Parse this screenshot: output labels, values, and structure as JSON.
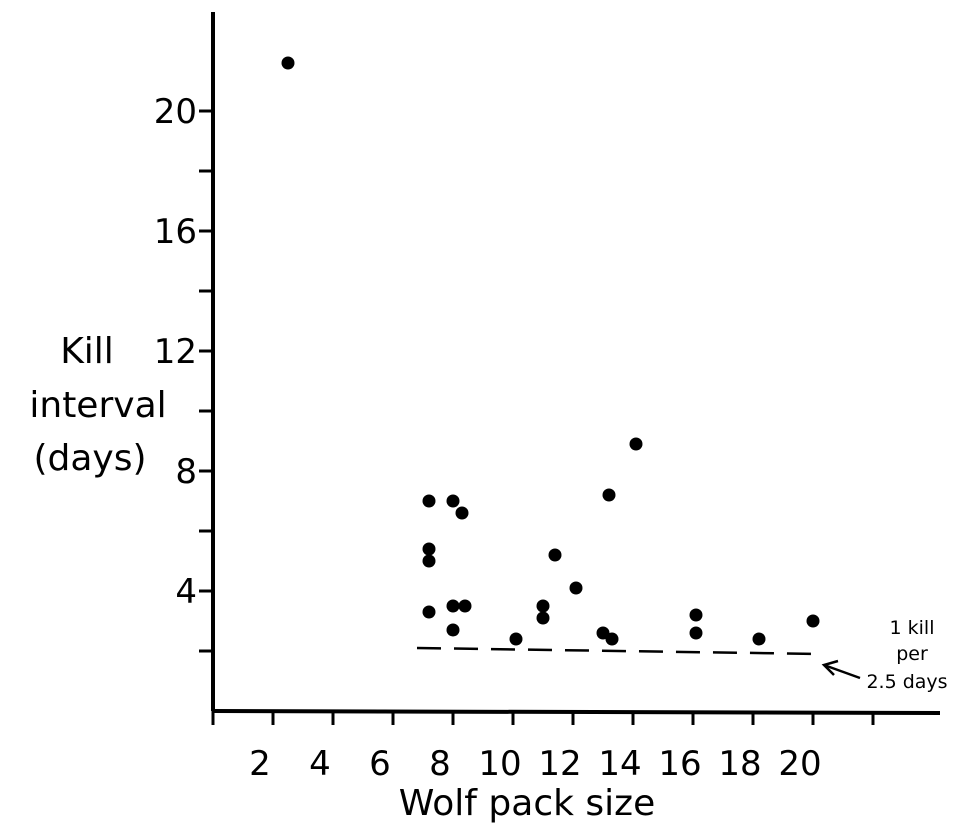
{
  "chart_data": {
    "type": "scatter",
    "title": "",
    "xlabel": "Wolf pack size",
    "ylabel_lines": [
      "Kill",
      "interval",
      "(days)"
    ],
    "xlim": [
      0,
      24
    ],
    "ylim": [
      0,
      24
    ],
    "x_ticks": [
      2,
      4,
      6,
      8,
      10,
      12,
      14,
      16,
      18,
      20
    ],
    "y_ticks_labeled": [
      4,
      8,
      12,
      16,
      20
    ],
    "y_ticks_minor": [
      2,
      6,
      10,
      14,
      18
    ],
    "grid": false,
    "legend": "none",
    "points": [
      {
        "x": 2.5,
        "y": 21.6
      },
      {
        "x": 7.2,
        "y": 7.0
      },
      {
        "x": 7.2,
        "y": 5.4
      },
      {
        "x": 7.2,
        "y": 5.0
      },
      {
        "x": 7.2,
        "y": 3.3
      },
      {
        "x": 8.0,
        "y": 7.0
      },
      {
        "x": 8.3,
        "y": 6.6
      },
      {
        "x": 8.0,
        "y": 3.5
      },
      {
        "x": 8.4,
        "y": 3.5
      },
      {
        "x": 8.0,
        "y": 2.7
      },
      {
        "x": 10.1,
        "y": 2.4
      },
      {
        "x": 11.0,
        "y": 3.5
      },
      {
        "x": 11.0,
        "y": 3.1
      },
      {
        "x": 11.4,
        "y": 5.2
      },
      {
        "x": 12.1,
        "y": 4.1
      },
      {
        "x": 13.0,
        "y": 2.6
      },
      {
        "x": 13.3,
        "y": 2.4
      },
      {
        "x": 13.2,
        "y": 7.2
      },
      {
        "x": 14.1,
        "y": 8.9
      },
      {
        "x": 16.1,
        "y": 3.2
      },
      {
        "x": 16.1,
        "y": 2.6
      },
      {
        "x": 18.2,
        "y": 2.4
      },
      {
        "x": 20.0,
        "y": 3.0
      }
    ],
    "reference_line": {
      "x_start": 6.8,
      "x_end": 20.3,
      "y_start": 2.1,
      "y_end": 1.9,
      "style": "dashed"
    },
    "annotation_lines": [
      "1 kill",
      "per",
      "2.5 days"
    ]
  }
}
